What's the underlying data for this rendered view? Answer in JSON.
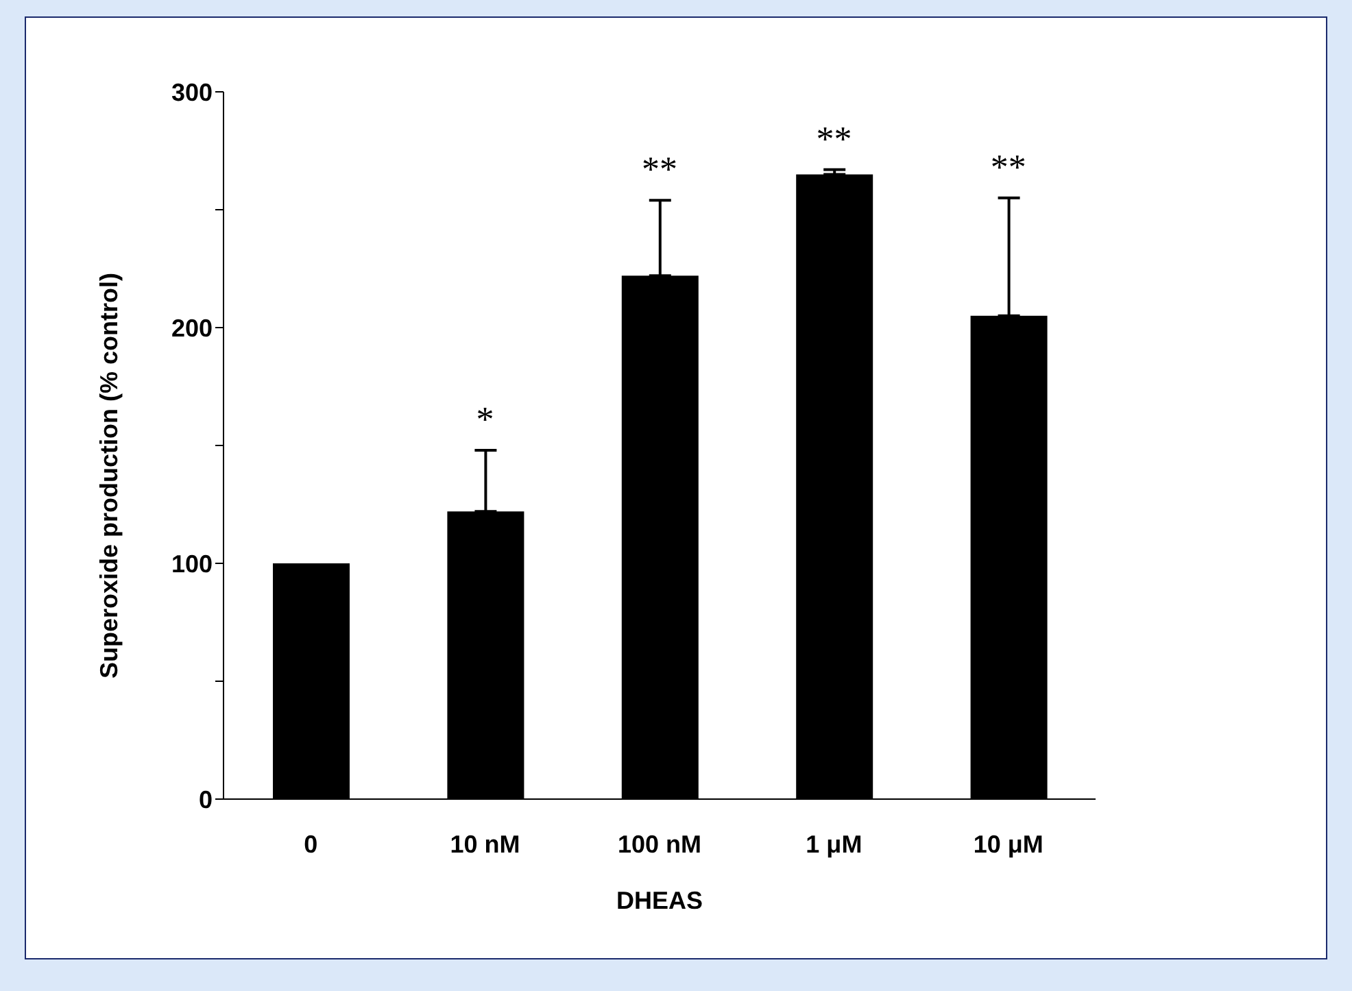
{
  "chart_data": {
    "type": "bar",
    "xlabel": "DHEAS",
    "ylabel": "Superoxide production (% control)",
    "categories": [
      "0",
      "10 nM",
      "100 nM",
      "1 μM",
      "10 μM"
    ],
    "values": [
      100,
      122,
      222,
      265,
      205
    ],
    "errors": [
      null,
      [
        122,
        148
      ],
      [
        222,
        254
      ],
      [
        265,
        267
      ],
      [
        205,
        255
      ]
    ],
    "color": "#000000",
    "ylim": [
      0,
      300
    ],
    "yticks": [
      0,
      {
        "value": 50,
        "label": null
      },
      100,
      {
        "value": 150,
        "label": null
      },
      200,
      {
        "value": 250,
        "label": null
      },
      300
    ],
    "annotations": [
      "*",
      "**",
      "**",
      "**"
    ],
    "grid": false,
    "legend": false
  }
}
